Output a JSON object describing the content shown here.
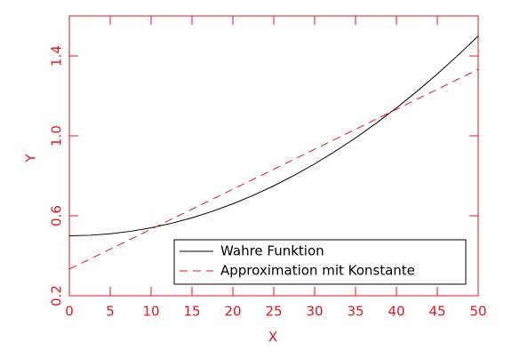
{
  "chart_data": {
    "type": "line",
    "x_label": "X",
    "y_label": "Y",
    "x": [
      0,
      2.5,
      5,
      7.5,
      10,
      12.5,
      15,
      17.5,
      20,
      22.5,
      25,
      27.5,
      30,
      32.5,
      35,
      37.5,
      40,
      42.5,
      45,
      47.5,
      50
    ],
    "series": [
      {
        "name": "Wahre Funktion",
        "color": "#000000",
        "dash": false,
        "values": [
          0.5,
          0.5025,
          0.51,
          0.5225,
          0.54,
          0.5625,
          0.59,
          0.6225,
          0.66,
          0.7025,
          0.75,
          0.8025,
          0.86,
          0.9225,
          0.99,
          1.0625,
          1.14,
          1.2225,
          1.31,
          1.4025,
          1.5
        ]
      },
      {
        "name": "Approximation mit Konstante",
        "color": "#e8141e",
        "dash": true,
        "values": [
          0.333,
          0.383,
          0.433,
          0.483,
          0.533,
          0.583,
          0.633,
          0.683,
          0.733,
          0.783,
          0.833,
          0.883,
          0.933,
          0.983,
          1.033,
          1.083,
          1.133,
          1.183,
          1.233,
          1.283,
          1.333
        ]
      }
    ],
    "xlim": [
      0,
      50
    ],
    "xticks": [
      0,
      5,
      10,
      15,
      20,
      25,
      30,
      35,
      40,
      45,
      50
    ],
    "ylim": [
      0.2,
      1.6
    ],
    "yticks": [
      0.2,
      0.6,
      {
        "value": 1.0,
        "label": "1.0"
      },
      1.4
    ],
    "axis_color": "#e8141e",
    "legend": "lower right"
  }
}
